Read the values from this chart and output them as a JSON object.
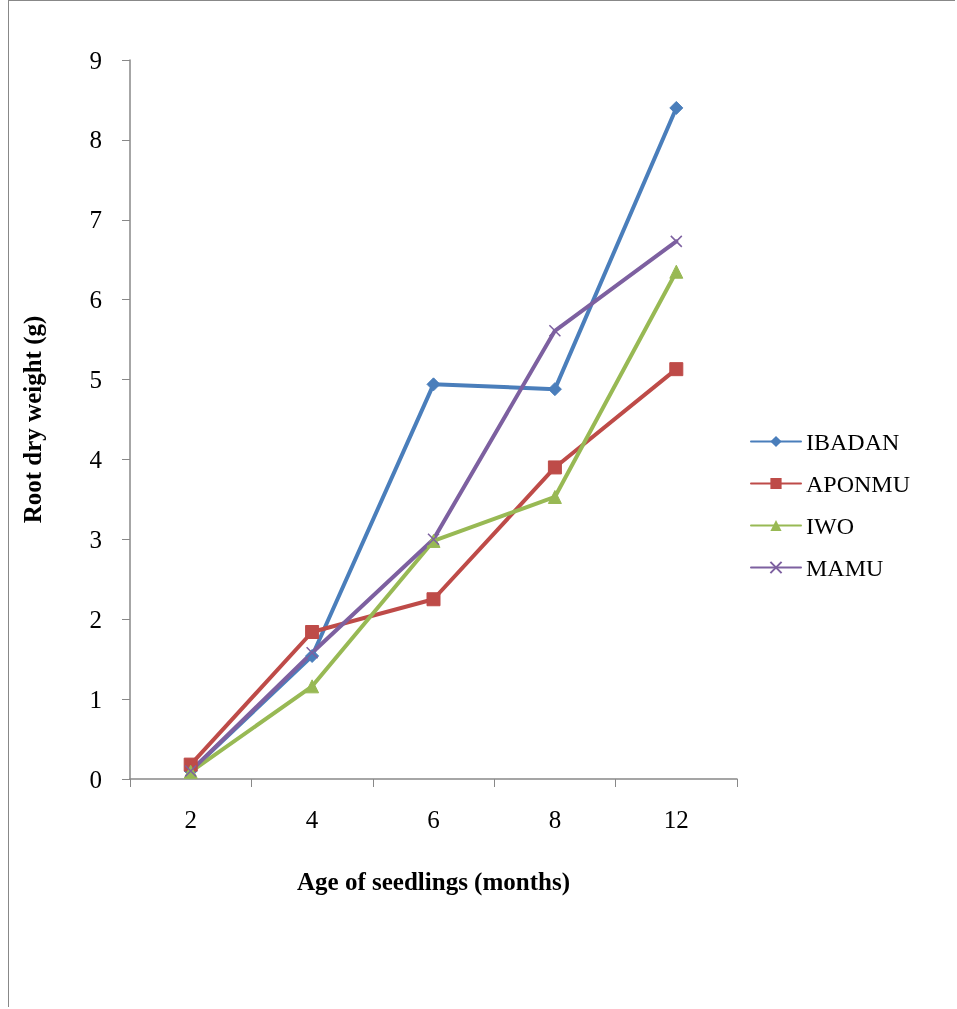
{
  "chart_data": {
    "type": "line",
    "xlabel": "Age of seedlings (months)",
    "ylabel": "Root dry weight (g)",
    "categories": [
      "2",
      "4",
      "6",
      "8",
      "12"
    ],
    "series": [
      {
        "name": "IBADAN",
        "color": "#4a7ebb",
        "marker": "diamond",
        "values": [
          0.1,
          1.54,
          4.94,
          4.88,
          8.4
        ]
      },
      {
        "name": "APONMU",
        "color": "#be4b48",
        "marker": "square",
        "values": [
          0.18,
          1.84,
          2.25,
          3.9,
          5.13
        ]
      },
      {
        "name": "IWO",
        "color": "#98b954",
        "marker": "triangle",
        "values": [
          0.09,
          1.16,
          2.98,
          3.53,
          6.35
        ]
      },
      {
        "name": "MAMU",
        "color": "#7d60a0",
        "marker": "cross",
        "values": [
          0.1,
          1.58,
          3.0,
          5.61,
          6.73
        ]
      }
    ],
    "ylim": [
      0,
      9
    ],
    "yticks": [
      0,
      1,
      2,
      3,
      4,
      5,
      6,
      7,
      8,
      9
    ],
    "grid": false,
    "legend": "right",
    "line_style": "solid"
  }
}
